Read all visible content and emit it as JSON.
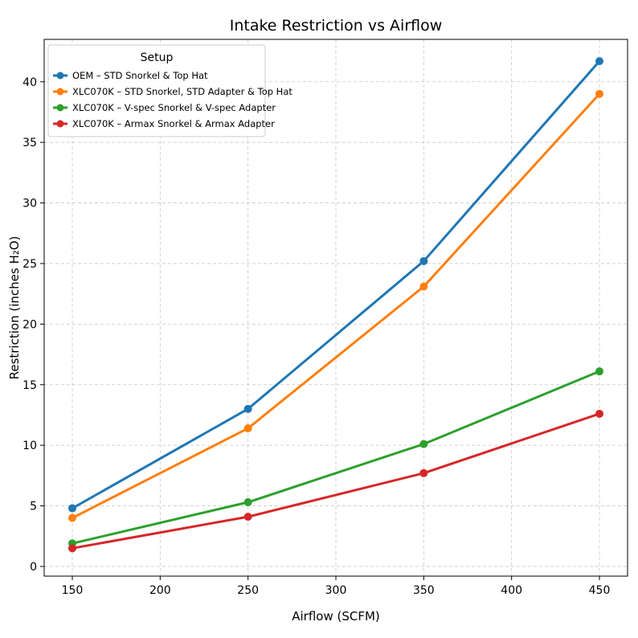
{
  "chart_data": {
    "type": "line",
    "title": "Intake Restriction vs Airflow",
    "xlabel": "Airflow (SCFM)",
    "ylabel": "Restriction (inches H₂O)",
    "x": [
      150,
      250,
      350,
      450
    ],
    "xlim": [
      134,
      466
    ],
    "ylim": [
      -0.8,
      43.5
    ],
    "xticks": [
      150,
      200,
      250,
      300,
      350,
      400,
      450
    ],
    "yticks": [
      0,
      5,
      10,
      15,
      20,
      25,
      30,
      35,
      40
    ],
    "grid": true,
    "legend": {
      "title": "Setup",
      "placement": "top-left"
    },
    "series": [
      {
        "name": "OEM – STD Snorkel & Top Hat",
        "color": "#1f77b4",
        "values": [
          4.8,
          13.0,
          25.2,
          41.7
        ]
      },
      {
        "name": "XLC070K – STD Snorkel, STD Adapter & Top Hat",
        "color": "#ff7f0e",
        "values": [
          4.0,
          11.4,
          23.1,
          39.0
        ]
      },
      {
        "name": "XLC070K – V-spec Snorkel & V-spec Adapter",
        "color": "#2ca02c",
        "values": [
          1.9,
          5.3,
          10.1,
          16.1
        ]
      },
      {
        "name": "XLC070K – Armax Snorkel & Armax Adapter",
        "color": "#d62728",
        "values": [
          1.5,
          4.1,
          7.7,
          12.6
        ]
      }
    ]
  }
}
